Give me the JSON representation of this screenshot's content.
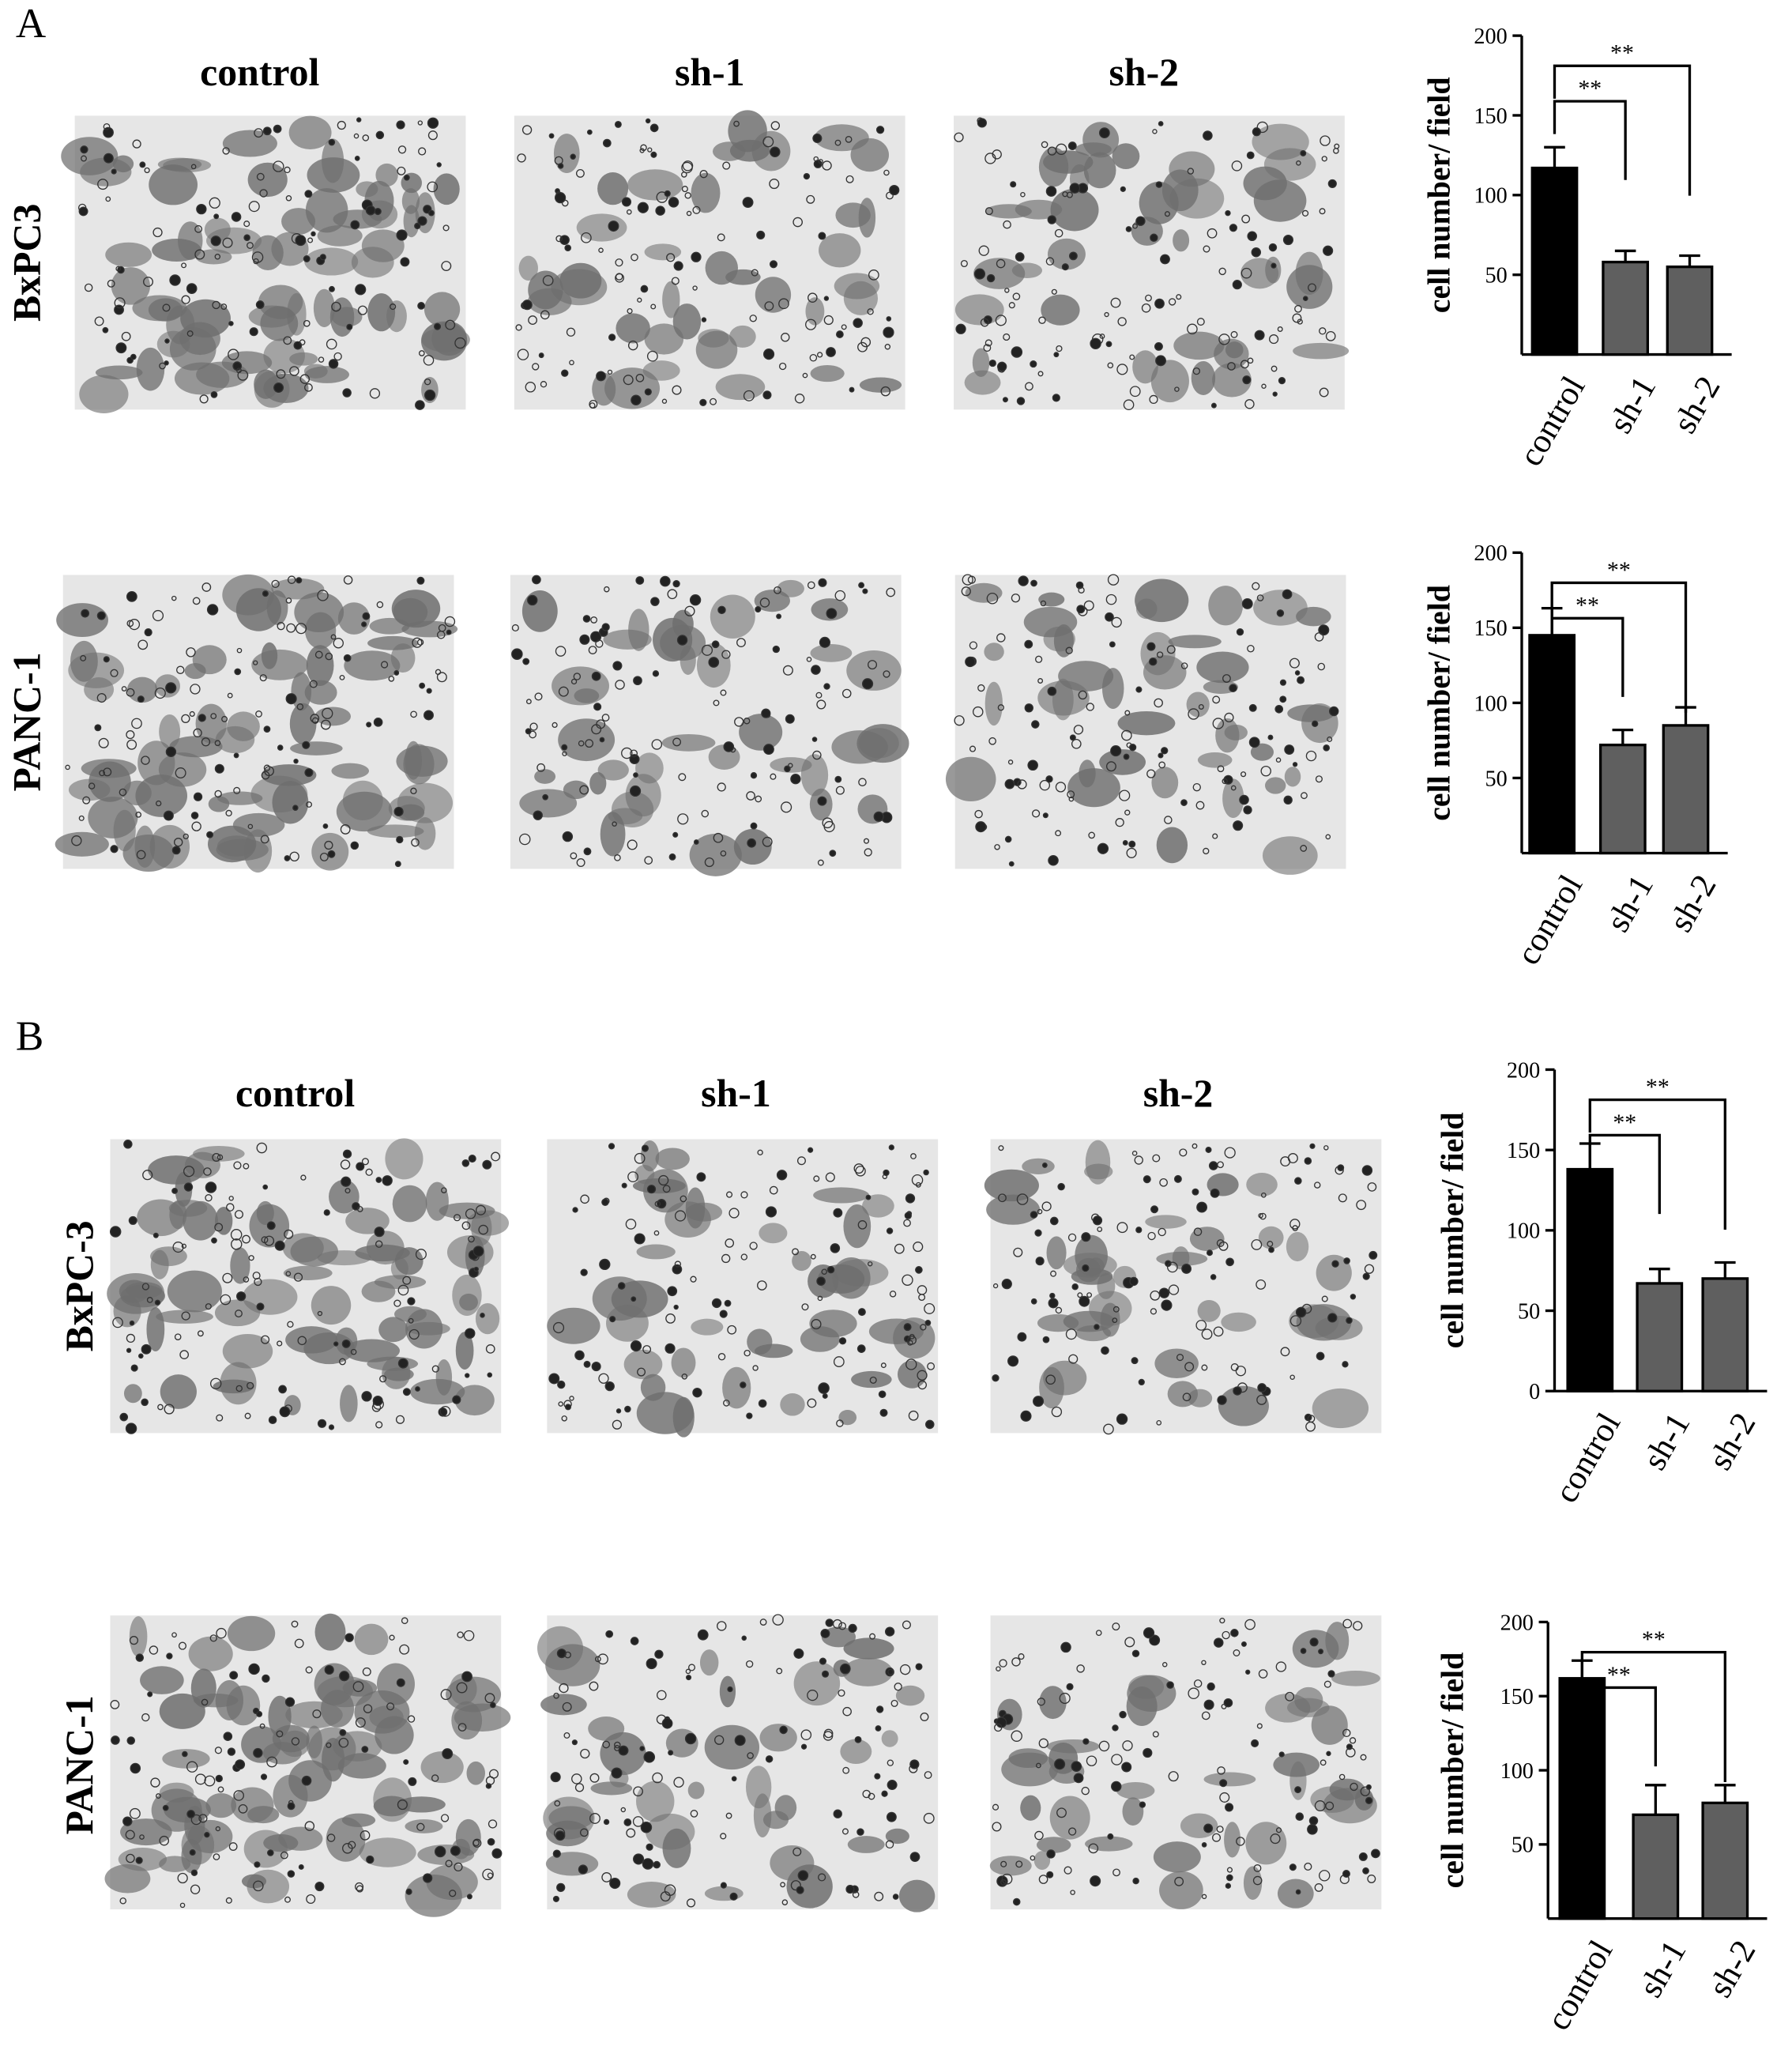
{
  "panels": [
    {
      "label": "A",
      "columns": [
        "control",
        "sh-1",
        "sh-2"
      ],
      "rows": [
        "BxPC3",
        "PANC-1"
      ]
    },
    {
      "label": "B",
      "columns": [
        "control",
        "sh-1",
        "sh-2"
      ],
      "rows": [
        "BxPC-3",
        "PANC-1"
      ]
    }
  ],
  "chart_data": [
    {
      "type": "bar",
      "y_label": "cell number/ field",
      "categories": [
        "control",
        "sh-1",
        "sh-2"
      ],
      "values": [
        117,
        58,
        55
      ],
      "errors": [
        13,
        7,
        7
      ],
      "colors": [
        "#000000",
        "#5f5f5f",
        "#5f5f5f"
      ],
      "ylim": [
        0,
        200
      ],
      "yticks": [
        50,
        100,
        150,
        200
      ],
      "annotations": [
        "**",
        "**"
      ]
    },
    {
      "type": "bar",
      "y_label": "cell number/ field",
      "categories": [
        "control",
        "sh-1",
        "sh-2"
      ],
      "values": [
        145,
        72,
        85
      ],
      "errors": [
        18,
        10,
        12
      ],
      "colors": [
        "#000000",
        "#5f5f5f",
        "#5f5f5f"
      ],
      "ylim": [
        0,
        200
      ],
      "yticks": [
        50,
        100,
        150,
        200
      ],
      "annotations": [
        "**",
        "**"
      ]
    },
    {
      "type": "bar",
      "y_label": "cell number/ field",
      "categories": [
        "control",
        "sh-1",
        "sh-2"
      ],
      "values": [
        138,
        67,
        70
      ],
      "errors": [
        16,
        9,
        10
      ],
      "colors": [
        "#000000",
        "#5f5f5f",
        "#5f5f5f"
      ],
      "ylim": [
        0,
        200
      ],
      "yticks": [
        0,
        50,
        100,
        150,
        200
      ],
      "annotations": [
        "**",
        "**"
      ]
    },
    {
      "type": "bar",
      "y_label": "cell number/ field",
      "categories": [
        "control",
        "sh-1",
        "sh-2"
      ],
      "values": [
        162,
        70,
        78
      ],
      "errors": [
        12,
        20,
        12
      ],
      "colors": [
        "#000000",
        "#5f5f5f",
        "#5f5f5f"
      ],
      "ylim": [
        0,
        200
      ],
      "yticks": [
        50,
        100,
        150,
        200
      ],
      "annotations": [
        "**",
        "**"
      ]
    }
  ]
}
